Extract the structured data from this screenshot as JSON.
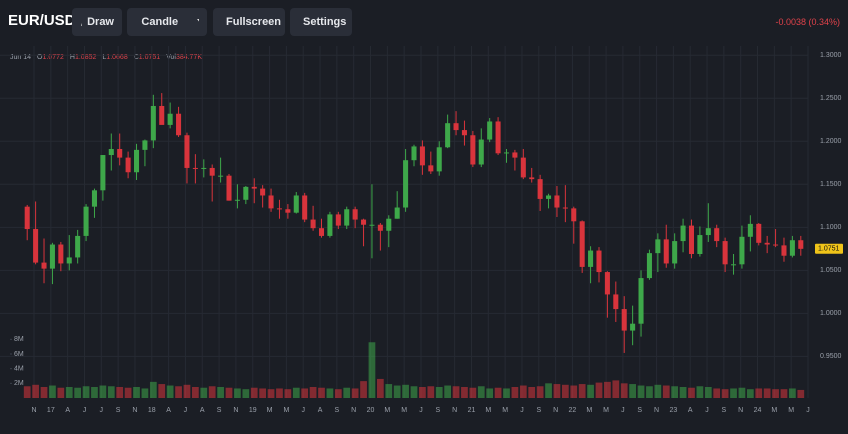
{
  "toolbar": {
    "symbol": "EUR/USD",
    "buttons": [
      "Draw",
      "Candle",
      "Fullscreen",
      "Settings"
    ],
    "change": "-0.0038 (0.34%)"
  },
  "legend": {
    "date": "Jun 14",
    "items": [
      {
        "key": "O",
        "value": "1.0772"
      },
      {
        "key": "H",
        "value": "1.0852"
      },
      {
        "key": "L",
        "value": "1.0668"
      },
      {
        "key": "C",
        "value": "1.0751"
      },
      {
        "key": "Vol",
        "value": "384.77K"
      }
    ]
  },
  "chart_data": {
    "type": "candlestick",
    "ohlc": [
      [
        1.124,
        1.126,
        1.085,
        1.098
      ],
      [
        1.098,
        1.13,
        1.057,
        1.059
      ],
      [
        1.059,
        1.087,
        1.035,
        1.052
      ],
      [
        1.052,
        1.082,
        1.034,
        1.08
      ],
      [
        1.08,
        1.083,
        1.049,
        1.058
      ],
      [
        1.058,
        1.091,
        1.05,
        1.065
      ],
      [
        1.065,
        1.097,
        1.058,
        1.09
      ],
      [
        1.09,
        1.127,
        1.084,
        1.124
      ],
      [
        1.124,
        1.145,
        1.111,
        1.143
      ],
      [
        1.143,
        1.184,
        1.131,
        1.184
      ],
      [
        1.184,
        1.209,
        1.166,
        1.191
      ],
      [
        1.191,
        1.209,
        1.172,
        1.181
      ],
      [
        1.181,
        1.188,
        1.157,
        1.164
      ],
      [
        1.164,
        1.197,
        1.155,
        1.19
      ],
      [
        1.19,
        1.202,
        1.171,
        1.201
      ],
      [
        1.201,
        1.254,
        1.192,
        1.241
      ],
      [
        1.241,
        1.256,
        1.22,
        1.219
      ],
      [
        1.219,
        1.245,
        1.215,
        1.232
      ],
      [
        1.232,
        1.24,
        1.205,
        1.207
      ],
      [
        1.207,
        1.21,
        1.151,
        1.169
      ],
      [
        1.169,
        1.185,
        1.151,
        1.168
      ],
      [
        1.168,
        1.179,
        1.158,
        1.169
      ],
      [
        1.169,
        1.173,
        1.13,
        1.16
      ],
      [
        1.16,
        1.181,
        1.152,
        1.16
      ],
      [
        1.16,
        1.162,
        1.131,
        1.131
      ],
      [
        1.131,
        1.15,
        1.122,
        1.132
      ],
      [
        1.132,
        1.148,
        1.127,
        1.147
      ],
      [
        1.147,
        1.157,
        1.128,
        1.145
      ],
      [
        1.145,
        1.149,
        1.123,
        1.137
      ],
      [
        1.137,
        1.145,
        1.118,
        1.122
      ],
      [
        1.122,
        1.132,
        1.11,
        1.121
      ],
      [
        1.121,
        1.127,
        1.11,
        1.117
      ],
      [
        1.117,
        1.141,
        1.116,
        1.137
      ],
      [
        1.137,
        1.14,
        1.106,
        1.109
      ],
      [
        1.109,
        1.125,
        1.096,
        1.099
      ],
      [
        1.099,
        1.11,
        1.088,
        1.09
      ],
      [
        1.09,
        1.118,
        1.088,
        1.115
      ],
      [
        1.115,
        1.118,
        1.098,
        1.102
      ],
      [
        1.102,
        1.124,
        1.098,
        1.121
      ],
      [
        1.121,
        1.124,
        1.099,
        1.109
      ],
      [
        1.109,
        1.11,
        1.078,
        1.103
      ],
      [
        1.103,
        1.15,
        1.064,
        1.103
      ],
      [
        1.103,
        1.105,
        1.073,
        1.096
      ],
      [
        1.096,
        1.114,
        1.077,
        1.11
      ],
      [
        1.11,
        1.142,
        1.11,
        1.123
      ],
      [
        1.123,
        1.191,
        1.118,
        1.178
      ],
      [
        1.178,
        1.196,
        1.171,
        1.194
      ],
      [
        1.194,
        1.201,
        1.161,
        1.172
      ],
      [
        1.172,
        1.188,
        1.162,
        1.165
      ],
      [
        1.165,
        1.2,
        1.16,
        1.193
      ],
      [
        1.193,
        1.231,
        1.192,
        1.221
      ],
      [
        1.221,
        1.235,
        1.207,
        1.213
      ],
      [
        1.213,
        1.224,
        1.195,
        1.207
      ],
      [
        1.207,
        1.212,
        1.17,
        1.173
      ],
      [
        1.173,
        1.215,
        1.17,
        1.202
      ],
      [
        1.202,
        1.227,
        1.199,
        1.223
      ],
      [
        1.223,
        1.228,
        1.184,
        1.186
      ],
      [
        1.186,
        1.191,
        1.175,
        1.187
      ],
      [
        1.187,
        1.19,
        1.166,
        1.181
      ],
      [
        1.181,
        1.191,
        1.156,
        1.158
      ],
      [
        1.158,
        1.169,
        1.152,
        1.156
      ],
      [
        1.156,
        1.161,
        1.119,
        1.133
      ],
      [
        1.133,
        1.139,
        1.122,
        1.137
      ],
      [
        1.137,
        1.148,
        1.112,
        1.123
      ],
      [
        1.123,
        1.149,
        1.106,
        1.122
      ],
      [
        1.122,
        1.124,
        1.081,
        1.107
      ],
      [
        1.107,
        1.108,
        1.047,
        1.054
      ],
      [
        1.054,
        1.078,
        1.035,
        1.073
      ],
      [
        1.073,
        1.077,
        1.036,
        1.048
      ],
      [
        1.048,
        1.049,
        0.995,
        1.022
      ],
      [
        1.022,
        1.037,
        0.99,
        1.005
      ],
      [
        1.005,
        1.02,
        0.954,
        0.98
      ],
      [
        0.98,
        1.009,
        0.963,
        0.988
      ],
      [
        0.988,
        1.05,
        0.973,
        1.041
      ],
      [
        1.041,
        1.074,
        1.039,
        1.07
      ],
      [
        1.07,
        1.093,
        1.048,
        1.086
      ],
      [
        1.086,
        1.103,
        1.053,
        1.058
      ],
      [
        1.058,
        1.093,
        1.052,
        1.084
      ],
      [
        1.084,
        1.11,
        1.071,
        1.102
      ],
      [
        1.102,
        1.109,
        1.064,
        1.069
      ],
      [
        1.069,
        1.101,
        1.066,
        1.091
      ],
      [
        1.091,
        1.128,
        1.083,
        1.099
      ],
      [
        1.099,
        1.103,
        1.077,
        1.084
      ],
      [
        1.084,
        1.088,
        1.048,
        1.057
      ],
      [
        1.057,
        1.069,
        1.045,
        1.057
      ],
      [
        1.057,
        1.102,
        1.052,
        1.089
      ],
      [
        1.089,
        1.114,
        1.072,
        1.104
      ],
      [
        1.104,
        1.105,
        1.079,
        1.082
      ],
      [
        1.082,
        1.09,
        1.07,
        1.08
      ],
      [
        1.08,
        1.098,
        1.077,
        1.079
      ],
      [
        1.079,
        1.088,
        1.06,
        1.067
      ],
      [
        1.067,
        1.09,
        1.065,
        1.085
      ],
      [
        1.085,
        1.09,
        1.067,
        1.075
      ]
    ],
    "volume": [
      1.6,
      1.8,
      1.5,
      1.7,
      1.4,
      1.5,
      1.4,
      1.6,
      1.5,
      1.7,
      1.6,
      1.5,
      1.4,
      1.5,
      1.3,
      2.2,
      1.9,
      1.7,
      1.6,
      1.8,
      1.5,
      1.4,
      1.6,
      1.5,
      1.4,
      1.3,
      1.2,
      1.4,
      1.3,
      1.2,
      1.3,
      1.2,
      1.4,
      1.3,
      1.5,
      1.4,
      1.3,
      1.2,
      1.4,
      1.3,
      2.3,
      7.6,
      2.6,
      1.9,
      1.7,
      1.8,
      1.6,
      1.5,
      1.6,
      1.5,
      1.7,
      1.6,
      1.5,
      1.4,
      1.6,
      1.3,
      1.4,
      1.3,
      1.5,
      1.7,
      1.5,
      1.6,
      2.0,
      1.9,
      1.8,
      1.7,
      1.9,
      1.8,
      2.1,
      2.2,
      2.4,
      2.0,
      1.9,
      1.7,
      1.6,
      1.8,
      1.7,
      1.6,
      1.5,
      1.4,
      1.6,
      1.5,
      1.3,
      1.2,
      1.3,
      1.4,
      1.2,
      1.3,
      1.3,
      1.2,
      1.2,
      1.3,
      1.1
    ],
    "up_color": "#3ea84a",
    "down_color": "#d9343c",
    "ylim": [
      0.94,
      1.32
    ],
    "yticks": [
      {
        "value": 0.95,
        "label": "0.9500"
      },
      {
        "value": 1.0,
        "label": "1.0000"
      },
      {
        "value": 1.05,
        "label": "1.0500"
      },
      {
        "value": 1.1,
        "label": "1.1000"
      },
      {
        "value": 1.15,
        "label": "1.1500"
      },
      {
        "value": 1.2,
        "label": "1.2000"
      },
      {
        "value": 1.25,
        "label": "1.2500"
      },
      {
        "value": 1.3,
        "label": "1.3000"
      }
    ],
    "y2lim": [
      0,
      9
    ],
    "y2ticks": [
      {
        "value": 2,
        "label": "2M"
      },
      {
        "value": 4,
        "label": "4M"
      },
      {
        "value": 6,
        "label": "6M"
      },
      {
        "value": 8,
        "label": "8M"
      }
    ],
    "last_price": 1.0751,
    "x_labels": [
      "N",
      "17",
      "A",
      "J",
      "J",
      "S",
      "N",
      "18",
      "A",
      "J",
      "A",
      "S",
      "N",
      "19",
      "M",
      "M",
      "J",
      "A",
      "S",
      "N",
      "20",
      "M",
      "M",
      "J",
      "S",
      "N",
      "21",
      "M",
      "M",
      "J",
      "S",
      "N",
      "22",
      "M",
      "M",
      "J",
      "S",
      "N",
      "23",
      "A",
      "J",
      "S",
      "N",
      "24",
      "M",
      "M",
      "J"
    ],
    "grid": true
  }
}
